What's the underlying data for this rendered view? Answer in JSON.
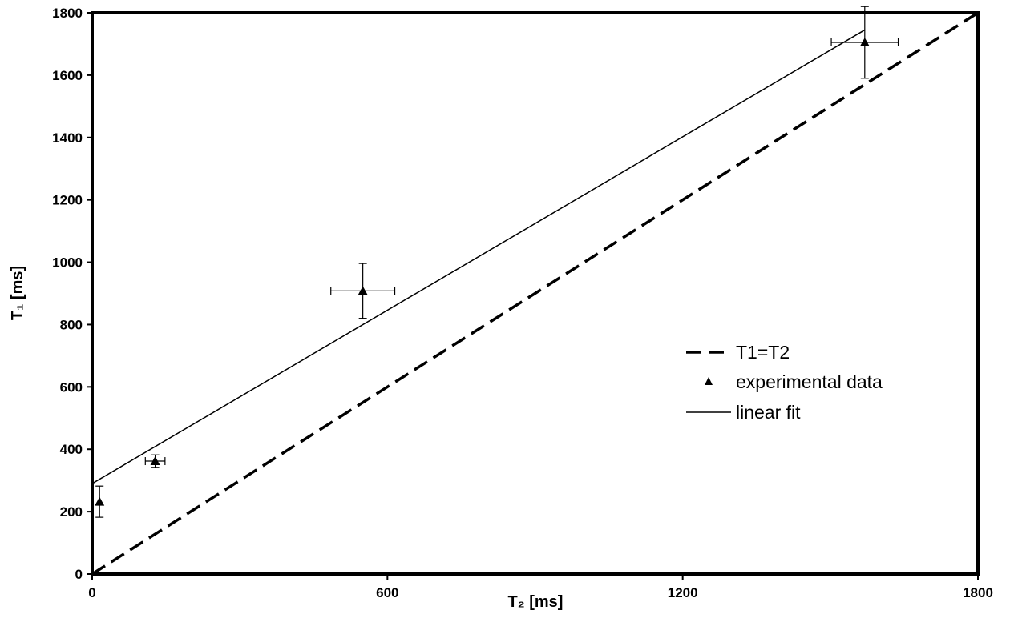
{
  "chart_data": {
    "type": "scatter",
    "xlabel": "T₂ [ms]",
    "ylabel": "T₁ [ms]",
    "xlim": [
      0,
      1800
    ],
    "ylim": [
      0,
      1800
    ],
    "x_ticks": [
      0,
      600,
      1200,
      1800
    ],
    "y_ticks": [
      0,
      200,
      400,
      600,
      800,
      1000,
      1200,
      1400,
      1600,
      1800
    ],
    "x_tick_labels": [
      "0",
      "600",
      "1200",
      "1800"
    ],
    "y_tick_labels": [
      "0",
      "200",
      "400",
      "600",
      "800",
      "1000",
      "1200",
      "1400",
      "1600",
      "1800"
    ],
    "grid": false,
    "legend_position": "right",
    "series": [
      {
        "name": "T1=T2",
        "kind": "line",
        "style": "dashed",
        "x": [
          0,
          1800
        ],
        "y": [
          0,
          1800
        ],
        "color": "#000000"
      },
      {
        "name": "experimental data",
        "kind": "points",
        "marker": "triangle",
        "x": [
          15,
          128,
          550,
          1570
        ],
        "y": [
          232,
          362,
          908,
          1705
        ],
        "xerr": [
          0,
          20,
          65,
          68
        ],
        "yerr": [
          50,
          20,
          88,
          115
        ],
        "color": "#000000"
      },
      {
        "name": "linear fit",
        "kind": "line",
        "style": "solid",
        "x": [
          0,
          1570
        ],
        "y": [
          290,
          1745
        ],
        "color": "#000000"
      }
    ]
  }
}
